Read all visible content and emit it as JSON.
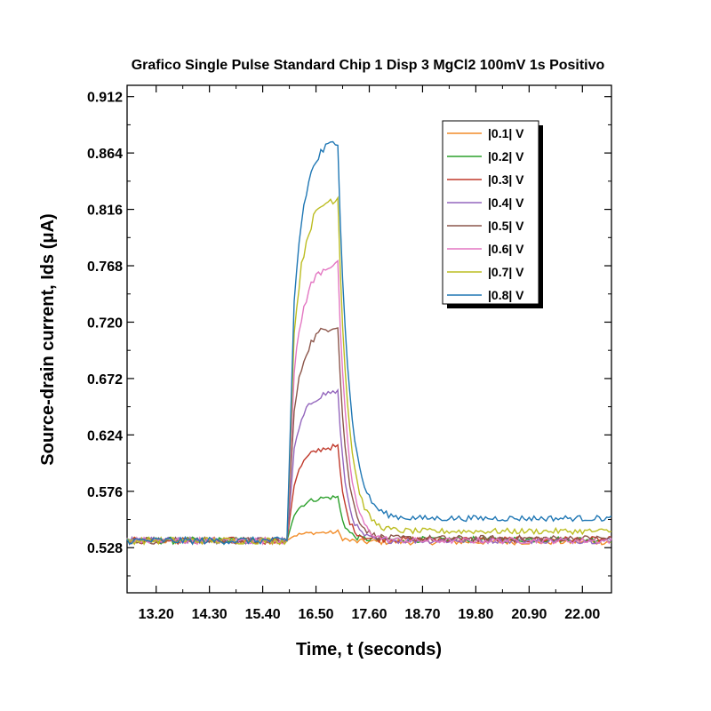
{
  "chart_data": {
    "type": "line",
    "title": "Grafico Single Pulse Standard Chip 1 Disp 3 MgCl2 100mV 1s Positivo",
    "xlabel": "Time, t (seconds)",
    "ylabel": "Source-drain current, Ids (μA)",
    "xlim": [
      12.6,
      22.6
    ],
    "ylim": [
      0.4896,
      0.9216
    ],
    "xticks": [
      13.2,
      14.3,
      15.4,
      16.5,
      17.6,
      18.7,
      19.8,
      20.9,
      22.0
    ],
    "xtick_labels": [
      "13.20",
      "14.30",
      "15.40",
      "16.50",
      "17.60",
      "18.70",
      "19.80",
      "20.90",
      "22.00"
    ],
    "yticks": [
      0.528,
      0.576,
      0.624,
      0.672,
      0.72,
      0.768,
      0.816,
      0.864,
      0.912
    ],
    "ytick_labels": [
      "0.528",
      "0.576",
      "0.624",
      "0.672",
      "0.720",
      "0.768",
      "0.816",
      "0.864",
      "0.912"
    ],
    "legend_position": "top-right",
    "grid": false,
    "pulse": {
      "rise_start": 15.9,
      "rise_end": 16.05,
      "plateau_end": 16.95,
      "baseline": 0.534
    },
    "series": [
      {
        "name": "|0.1| V",
        "color": "#f28c28",
        "peak": 0.541,
        "tail": 0.533
      },
      {
        "name": "|0.2| V",
        "color": "#2ca02c",
        "peak": 0.571,
        "tail": 0.535
      },
      {
        "name": "|0.3| V",
        "color": "#c0392b",
        "peak": 0.614,
        "tail": 0.535
      },
      {
        "name": "|0.4| V",
        "color": "#9467bd",
        "peak": 0.661,
        "tail": 0.534
      },
      {
        "name": "|0.5| V",
        "color": "#8c564b",
        "peak": 0.717,
        "tail": 0.536
      },
      {
        "name": "|0.6| V",
        "color": "#e377c2",
        "peak": 0.77,
        "tail": 0.534
      },
      {
        "name": "|0.7| V",
        "color": "#bcbd22",
        "peak": 0.826,
        "tail": 0.542
      },
      {
        "name": "|0.8| V",
        "color": "#1f77b4",
        "peak": 0.873,
        "tail": 0.553
      }
    ]
  }
}
